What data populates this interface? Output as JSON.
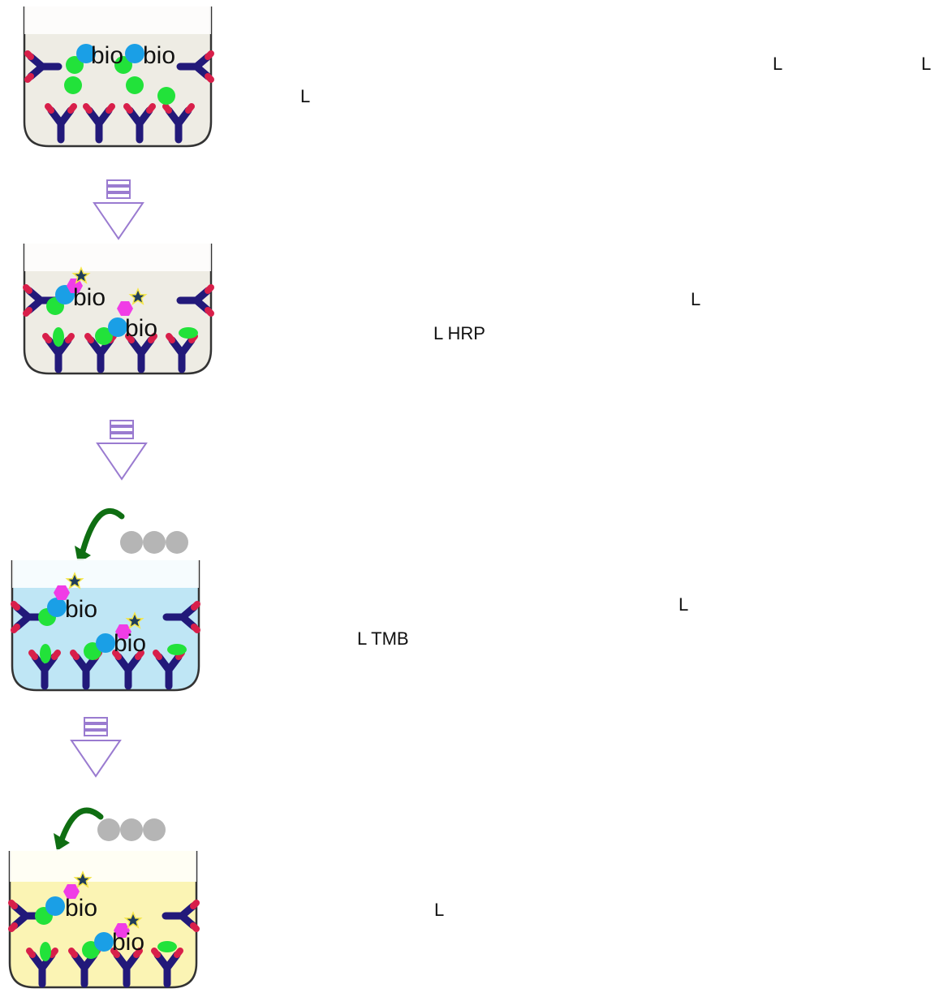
{
  "steps": [
    {
      "id": "step1",
      "well_fill": "#eeece4",
      "bio_labels": [
        "bio",
        "bio"
      ],
      "captions": [
        "L",
        "L",
        "L"
      ]
    },
    {
      "id": "step2",
      "well_fill": "#eeece4",
      "bio_labels": [
        "bio",
        "bio"
      ],
      "captions": [
        "L",
        "L HRP"
      ]
    },
    {
      "id": "step3",
      "well_fill": "#bfe6f5",
      "bio_labels": [
        "bio",
        "bio"
      ],
      "captions": [
        "L",
        "L TMB"
      ]
    },
    {
      "id": "step4",
      "well_fill": "#fbf4b4",
      "bio_labels": [
        "bio",
        "bio"
      ],
      "captions": [
        "L"
      ]
    }
  ],
  "colors": {
    "antibody_stem": "#22197a",
    "antibody_tip": "#d81f4a",
    "antigen": "#22e23a",
    "detection_antibody": "#1a9fe6",
    "streptavidin": "#f03ce6",
    "hrp_star": "#1f3d5a",
    "arrow_outline": "#9a7bd0",
    "reagent_arrow": "#0f6e12",
    "reagent_drop": "#b5b5b5"
  }
}
